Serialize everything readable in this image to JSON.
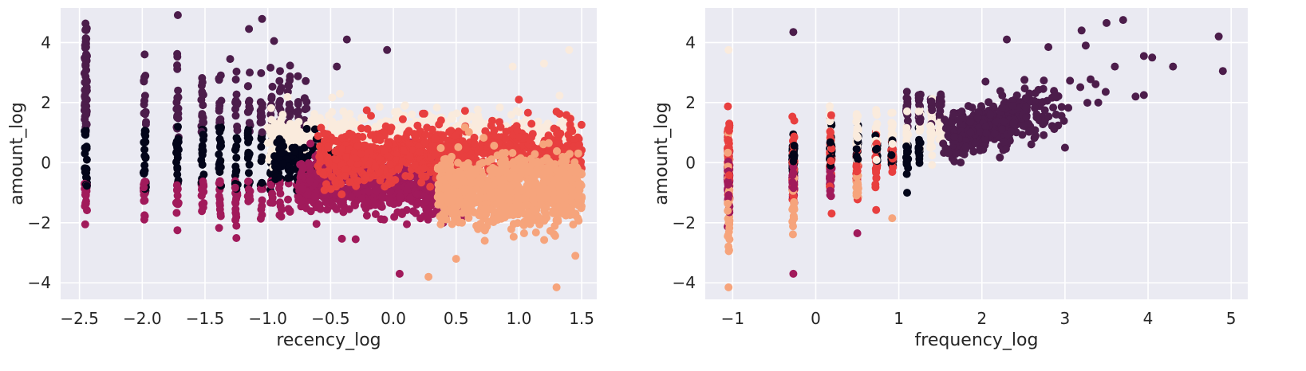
{
  "chart_data": [
    {
      "type": "scatter",
      "title": "",
      "xlabel": "recency_log",
      "ylabel": "amount_log",
      "xlim": [
        -2.65,
        1.62
      ],
      "ylim": [
        -4.55,
        5.15
      ],
      "xticks": [
        -2.5,
        -2.0,
        -1.5,
        -1.0,
        -0.5,
        0.0,
        0.5,
        1.0,
        1.5
      ],
      "xtick_labels": [
        "−2.5",
        "−2.0",
        "−1.5",
        "−1.0",
        "−0.5",
        "0.0",
        "0.5",
        "1.0",
        "1.5"
      ],
      "yticks": [
        -4,
        -2,
        0,
        2,
        4
      ],
      "ytick_labels": [
        "−4",
        "−2",
        "0",
        "2",
        "4"
      ],
      "grid": true,
      "legend": "none",
      "clusters": [
        {
          "color": "#03051a",
          "center": [
            -1.5,
            0.2
          ]
        },
        {
          "color": "#4c1d4b",
          "center": [
            -1.2,
            1.9
          ]
        },
        {
          "color": "#a11a5b",
          "center": [
            -0.4,
            -1.0
          ]
        },
        {
          "color": "#e83f3f",
          "center": [
            0.7,
            0.4
          ]
        },
        {
          "color": "#f6a47c",
          "center": [
            1.0,
            -1.1
          ]
        },
        {
          "color": "#faebdd",
          "center": [
            -0.2,
            1.2
          ]
        }
      ]
    },
    {
      "type": "scatter",
      "title": "",
      "xlabel": "frequency_log",
      "ylabel": "amount_log",
      "xlim": [
        -1.33,
        5.2
      ],
      "ylim": [
        -4.55,
        5.15
      ],
      "xticks": [
        -1,
        0,
        1,
        2,
        3,
        4,
        5
      ],
      "xtick_labels": [
        "−1",
        "0",
        "1",
        "2",
        "3",
        "4",
        "5"
      ],
      "yticks": [
        -4,
        -2,
        0,
        2,
        4
      ],
      "ytick_labels": [
        "−4",
        "−2",
        "0",
        "2",
        "4"
      ],
      "grid": true,
      "legend": "none",
      "clusters": [
        {
          "color": "#03051a",
          "center": [
            0.3,
            0.2
          ]
        },
        {
          "color": "#4c1d4b",
          "center": [
            2.3,
            1.9
          ]
        },
        {
          "color": "#a11a5b",
          "center": [
            -0.5,
            -0.8
          ]
        },
        {
          "color": "#e83f3f",
          "center": [
            -0.4,
            0.2
          ]
        },
        {
          "color": "#f6a47c",
          "center": [
            -0.9,
            -1.2
          ]
        },
        {
          "color": "#faebdd",
          "center": [
            1.0,
            1.0
          ]
        }
      ]
    }
  ]
}
